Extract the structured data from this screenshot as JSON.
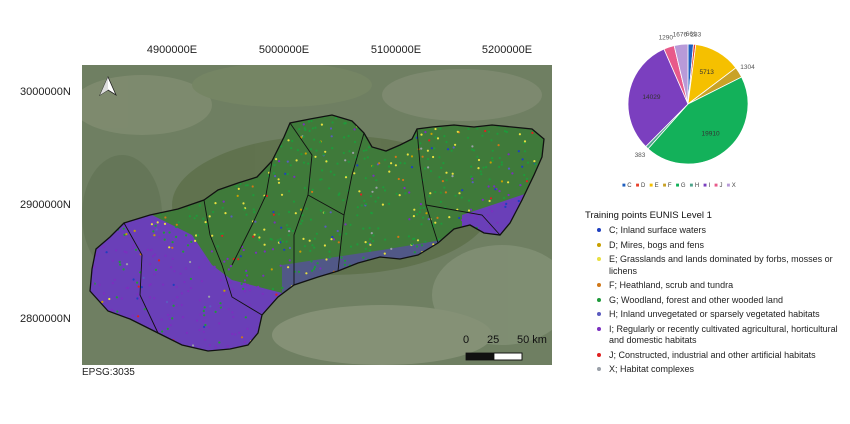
{
  "map": {
    "x_ticks": [
      "4900000E",
      "5000000E",
      "5100000E",
      "5200000E"
    ],
    "y_ticks": [
      "3000000N",
      "2900000N",
      "2800000N"
    ],
    "crs_label": "EPSG:3035",
    "scale_labels": [
      "0",
      "25",
      "50 km"
    ],
    "north_arrow": "north-arrow-icon"
  },
  "chart_data": {
    "type": "pie",
    "categories": [
      "C",
      "D",
      "E",
      "F",
      "G",
      "H",
      "I",
      "J",
      "X"
    ],
    "values": [
      661,
      283,
      5713,
      1304,
      19910,
      383,
      14029,
      1290,
      1676
    ],
    "data_labels": [
      "661",
      "283",
      "5713",
      "1304",
      "19910",
      "383",
      "14029",
      "1290",
      "1676"
    ],
    "colors": [
      "#1f5fbf",
      "#e8412b",
      "#f5c000",
      "#c9a227",
      "#13b15a",
      "#4fa48c",
      "#7b3fbf",
      "#e85a8a",
      "#b89ad8"
    ],
    "legend_placement": "bottom"
  },
  "legend": {
    "title": "Training points EUNIS Level 1",
    "items": [
      {
        "label": "C; Inland surface waters",
        "color": "#1f3fbf"
      },
      {
        "label": "D; Mires, bogs and fens",
        "color": "#c8a000"
      },
      {
        "label": "E; Grasslands and lands dominated by forbs, mosses or lichens",
        "color": "#e8e040"
      },
      {
        "label": "F; Heathland, scrub and tundra",
        "color": "#d07818"
      },
      {
        "label": "G; Woodland, forest and other wooded land",
        "color": "#1f9a3a"
      },
      {
        "label": "H; Inland unvegetated or sparsely vegetated habitats",
        "color": "#5b5bbf"
      },
      {
        "label": "I; Regularly or recently cultivated agricultural, horticultural and domestic habitats",
        "color": "#7b2fbf"
      },
      {
        "label": "J; Constructed, industrial and other artificial habitats",
        "color": "#e02020"
      },
      {
        "label": "X; Habitat complexes",
        "color": "#9aa0a8"
      }
    ]
  }
}
